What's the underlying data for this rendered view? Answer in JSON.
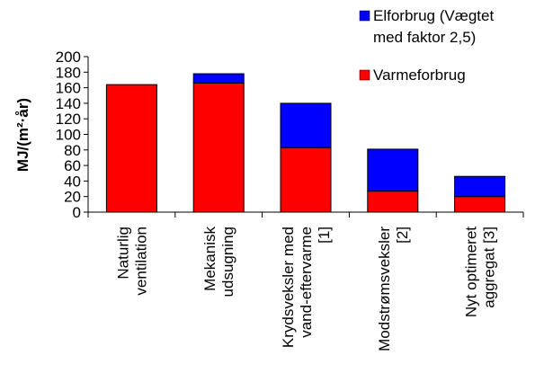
{
  "chart_data": {
    "type": "bar",
    "stacked": true,
    "title": "",
    "xlabel": "",
    "ylabel": "MJ/(m²·år)",
    "ylim": [
      0,
      200
    ],
    "yticks": [
      0,
      20,
      40,
      60,
      80,
      100,
      120,
      140,
      160,
      180,
      200
    ],
    "grid": false,
    "legend_position": "top-right",
    "categories": [
      [
        "Naturlig",
        "ventilation"
      ],
      [
        "Mekanisk",
        "udsugning"
      ],
      [
        "Krydsveksler med",
        "vand-eftervarme",
        "[1]"
      ],
      [
        "Modstrømsveksler",
        "[2]"
      ],
      [
        "Nyt optimeret",
        "aggregat [3]"
      ]
    ],
    "series": [
      {
        "name": "Varmeforbrug",
        "color": "#ff0000",
        "values": [
          164,
          166,
          83,
          27,
          20
        ]
      },
      {
        "name": "Elforbrug (Vægtet med faktor 2,5)",
        "legend_lines": [
          "Elforbrug (Vægtet",
          "med faktor 2,5)"
        ],
        "color": "#0000ff",
        "values": [
          0,
          12,
          57,
          54,
          26
        ]
      }
    ]
  }
}
